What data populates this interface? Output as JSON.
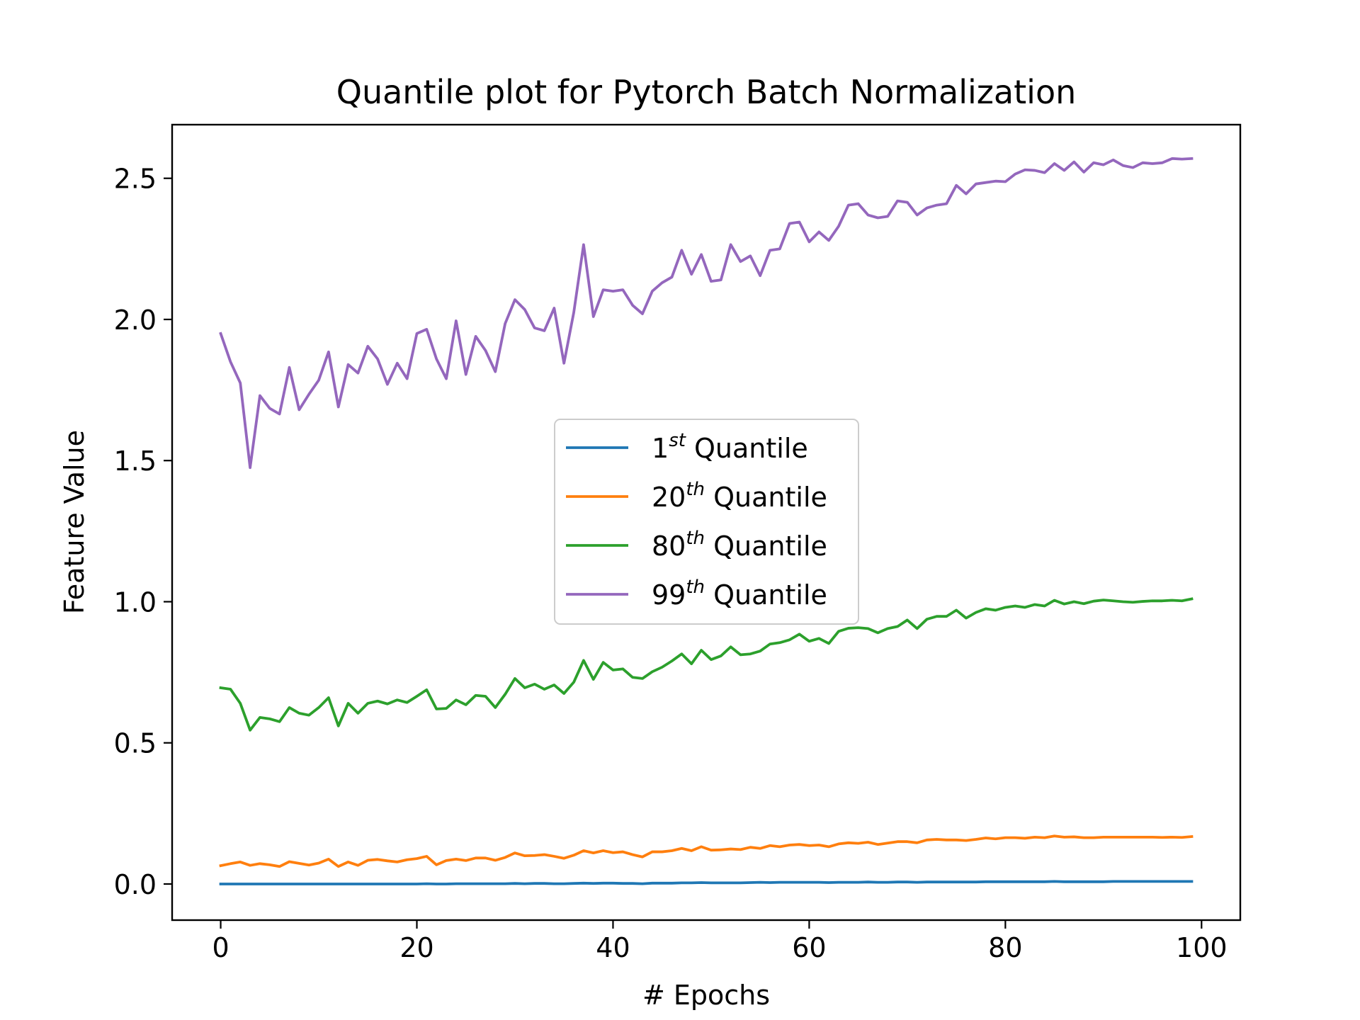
{
  "chart_data": {
    "type": "line",
    "title": "Quantile plot for Pytorch Batch Normalization",
    "xlabel": "# Epochs",
    "ylabel": "Feature Value",
    "xlim": [
      -4.95,
      103.95
    ],
    "ylim": [
      -0.128,
      2.69
    ],
    "xticks": [
      0,
      20,
      40,
      60,
      80,
      100
    ],
    "xtick_labels": [
      "0",
      "20",
      "40",
      "60",
      "80",
      "100"
    ],
    "yticks": [
      0.0,
      0.5,
      1.0,
      1.5,
      2.0,
      2.5
    ],
    "ytick_labels": [
      "0.0",
      "0.5",
      "1.0",
      "1.5",
      "2.0",
      "2.5"
    ],
    "grid": false,
    "legend": "center",
    "x": [
      0,
      1,
      2,
      3,
      4,
      5,
      6,
      7,
      8,
      9,
      10,
      11,
      12,
      13,
      14,
      15,
      16,
      17,
      18,
      19,
      20,
      21,
      22,
      23,
      24,
      25,
      26,
      27,
      28,
      29,
      30,
      31,
      32,
      33,
      34,
      35,
      36,
      37,
      38,
      39,
      40,
      41,
      42,
      43,
      44,
      45,
      46,
      47,
      48,
      49,
      50,
      51,
      52,
      53,
      54,
      55,
      56,
      57,
      58,
      59,
      60,
      61,
      62,
      63,
      64,
      65,
      66,
      67,
      68,
      69,
      70,
      71,
      72,
      73,
      74,
      75,
      76,
      77,
      78,
      79,
      80,
      81,
      82,
      83,
      84,
      85,
      86,
      87,
      88,
      89,
      90,
      91,
      92,
      93,
      94,
      95,
      96,
      97,
      98,
      99
    ],
    "series": [
      {
        "base": "1",
        "sup": "st",
        "suffix": " Quantile",
        "color": "#1f77b4",
        "values": [
          0.0,
          0.0,
          0.0,
          0.0,
          0.0,
          0.0,
          0.0,
          0.0,
          0.0,
          0.0,
          0.0,
          0.0,
          0.0,
          0.0,
          0.0,
          0.0,
          0.0,
          0.0,
          0.0,
          0.0,
          0.0,
          0.001,
          0.0,
          0.0,
          0.001,
          0.001,
          0.001,
          0.001,
          0.001,
          0.001,
          0.002,
          0.001,
          0.002,
          0.002,
          0.001,
          0.001,
          0.002,
          0.003,
          0.002,
          0.003,
          0.003,
          0.002,
          0.002,
          0.001,
          0.003,
          0.003,
          0.003,
          0.004,
          0.004,
          0.005,
          0.004,
          0.004,
          0.004,
          0.004,
          0.005,
          0.006,
          0.005,
          0.006,
          0.006,
          0.006,
          0.006,
          0.006,
          0.005,
          0.006,
          0.006,
          0.006,
          0.007,
          0.006,
          0.006,
          0.007,
          0.007,
          0.006,
          0.007,
          0.007,
          0.007,
          0.007,
          0.007,
          0.007,
          0.008,
          0.008,
          0.008,
          0.008,
          0.008,
          0.008,
          0.008,
          0.009,
          0.008,
          0.008,
          0.008,
          0.008,
          0.008,
          0.009,
          0.009,
          0.009,
          0.009,
          0.009,
          0.009,
          0.009,
          0.009,
          0.009
        ]
      },
      {
        "base": "20",
        "sup": "th",
        "suffix": " Quantile",
        "color": "#ff7f0e",
        "values": [
          0.065,
          0.072,
          0.078,
          0.066,
          0.072,
          0.068,
          0.062,
          0.079,
          0.073,
          0.067,
          0.074,
          0.088,
          0.062,
          0.078,
          0.066,
          0.084,
          0.087,
          0.082,
          0.078,
          0.086,
          0.09,
          0.098,
          0.068,
          0.083,
          0.088,
          0.083,
          0.092,
          0.092,
          0.084,
          0.094,
          0.11,
          0.1,
          0.101,
          0.104,
          0.098,
          0.091,
          0.102,
          0.118,
          0.11,
          0.118,
          0.111,
          0.114,
          0.104,
          0.096,
          0.114,
          0.114,
          0.118,
          0.126,
          0.118,
          0.132,
          0.12,
          0.121,
          0.124,
          0.122,
          0.13,
          0.126,
          0.136,
          0.132,
          0.138,
          0.14,
          0.136,
          0.138,
          0.132,
          0.142,
          0.146,
          0.144,
          0.148,
          0.14,
          0.145,
          0.15,
          0.15,
          0.146,
          0.156,
          0.158,
          0.156,
          0.156,
          0.154,
          0.158,
          0.163,
          0.16,
          0.164,
          0.164,
          0.162,
          0.166,
          0.164,
          0.17,
          0.166,
          0.167,
          0.164,
          0.164,
          0.166,
          0.166,
          0.166,
          0.166,
          0.166,
          0.166,
          0.165,
          0.166,
          0.165,
          0.168
        ]
      },
      {
        "base": "80",
        "sup": "th",
        "suffix": " Quantile",
        "color": "#2ca02c",
        "values": [
          0.695,
          0.69,
          0.64,
          0.545,
          0.59,
          0.585,
          0.575,
          0.625,
          0.605,
          0.598,
          0.625,
          0.66,
          0.56,
          0.64,
          0.605,
          0.64,
          0.648,
          0.638,
          0.652,
          0.643,
          0.665,
          0.688,
          0.62,
          0.622,
          0.652,
          0.635,
          0.668,
          0.665,
          0.625,
          0.672,
          0.728,
          0.695,
          0.708,
          0.69,
          0.705,
          0.675,
          0.715,
          0.792,
          0.725,
          0.785,
          0.758,
          0.762,
          0.732,
          0.728,
          0.752,
          0.768,
          0.79,
          0.815,
          0.78,
          0.828,
          0.795,
          0.808,
          0.84,
          0.812,
          0.815,
          0.825,
          0.85,
          0.855,
          0.865,
          0.885,
          0.86,
          0.87,
          0.852,
          0.895,
          0.906,
          0.908,
          0.905,
          0.89,
          0.905,
          0.912,
          0.935,
          0.905,
          0.938,
          0.948,
          0.948,
          0.97,
          0.942,
          0.962,
          0.975,
          0.97,
          0.98,
          0.985,
          0.98,
          0.99,
          0.985,
          1.005,
          0.992,
          1.0,
          0.993,
          1.002,
          1.006,
          1.003,
          1.0,
          0.998,
          1.001,
          1.003,
          1.003,
          1.005,
          1.003,
          1.01
        ]
      },
      {
        "base": "99",
        "sup": "th",
        "suffix": " Quantile",
        "color": "#9467bd",
        "values": [
          1.95,
          1.85,
          1.775,
          1.475,
          1.73,
          1.685,
          1.665,
          1.83,
          1.68,
          1.735,
          1.785,
          1.885,
          1.69,
          1.84,
          1.81,
          1.905,
          1.86,
          1.77,
          1.845,
          1.79,
          1.95,
          1.965,
          1.86,
          1.79,
          1.995,
          1.805,
          1.94,
          1.89,
          1.815,
          1.985,
          2.07,
          2.035,
          1.97,
          1.96,
          2.04,
          1.845,
          2.025,
          2.265,
          2.01,
          2.105,
          2.1,
          2.105,
          2.05,
          2.02,
          2.1,
          2.13,
          2.15,
          2.245,
          2.16,
          2.23,
          2.135,
          2.14,
          2.265,
          2.205,
          2.225,
          2.155,
          2.245,
          2.25,
          2.34,
          2.345,
          2.275,
          2.31,
          2.28,
          2.33,
          2.405,
          2.41,
          2.37,
          2.36,
          2.365,
          2.42,
          2.415,
          2.37,
          2.395,
          2.405,
          2.41,
          2.475,
          2.445,
          2.48,
          2.485,
          2.49,
          2.488,
          2.515,
          2.53,
          2.528,
          2.52,
          2.552,
          2.528,
          2.558,
          2.522,
          2.555,
          2.548,
          2.565,
          2.545,
          2.538,
          2.555,
          2.552,
          2.555,
          2.57,
          2.568,
          2.57
        ]
      }
    ]
  }
}
